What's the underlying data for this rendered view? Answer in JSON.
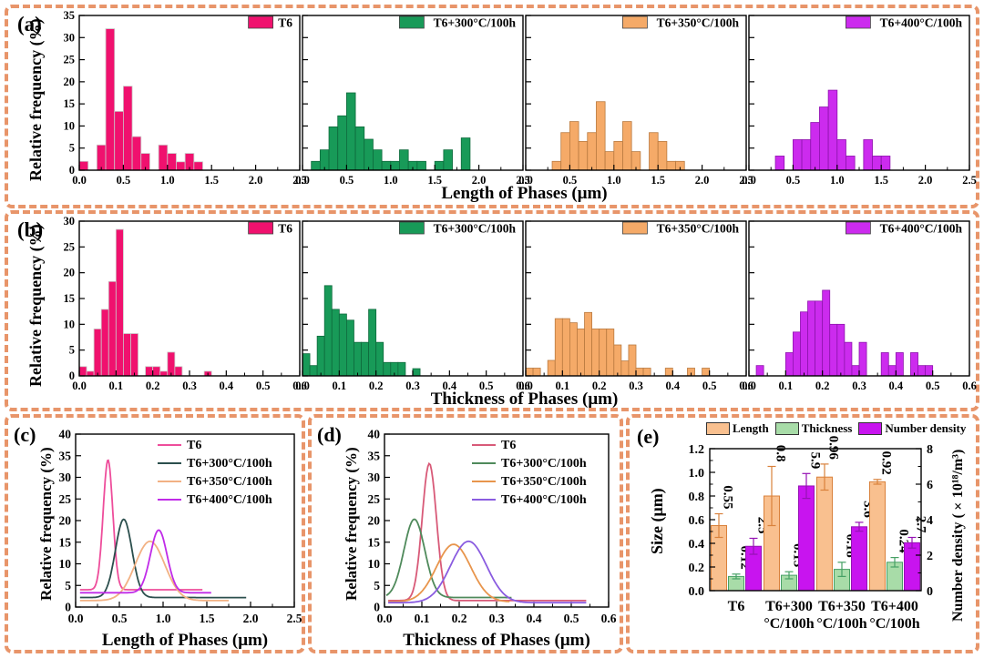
{
  "figure": {
    "border_color": "#E8956A",
    "background": "#ffffff"
  },
  "chart_data": [
    {
      "id": "a",
      "letter": "(a)",
      "type": "histogram-row",
      "ylabel": "Relative frequency (%)",
      "xlabel": "Length of Phases (μm)",
      "ylim": [
        0,
        35
      ],
      "yticks": [
        0,
        5,
        10,
        15,
        20,
        25,
        30,
        35
      ],
      "xlim": [
        0,
        2.5
      ],
      "xticks": [
        0,
        0.5,
        1,
        1.5,
        2,
        2.5
      ],
      "xtick_labels": [
        "0.0",
        "0.5",
        "1.0",
        "1.5",
        "2.0",
        "2.5"
      ],
      "x_minor_step": 0.25,
      "bin_width": 0.1,
      "grid": false,
      "subplots": [
        {
          "legend": "T6",
          "fill": "#F0116E",
          "stroke": "#c9c9c9",
          "bars": [
            [
              0.0,
              2
            ],
            [
              0.2,
              5.7
            ],
            [
              0.3,
              32
            ],
            [
              0.4,
              13.3
            ],
            [
              0.5,
              19
            ],
            [
              0.6,
              7.6
            ],
            [
              0.7,
              3.8
            ],
            [
              0.9,
              5.7
            ],
            [
              1.0,
              3.8
            ],
            [
              1.1,
              1.9
            ],
            [
              1.2,
              3.8
            ],
            [
              1.3,
              1.9
            ]
          ]
        },
        {
          "legend": "T6+300°C/100h",
          "fill": "#189A58",
          "stroke": "#0e6a3c",
          "bars": [
            [
              0.1,
              2
            ],
            [
              0.2,
              4.6
            ],
            [
              0.3,
              9.8
            ],
            [
              0.4,
              12.3
            ],
            [
              0.5,
              17.5
            ],
            [
              0.6,
              9.8
            ],
            [
              0.7,
              7
            ],
            [
              0.8,
              4.6
            ],
            [
              0.9,
              2
            ],
            [
              1.0,
              2
            ],
            [
              1.1,
              4.6
            ],
            [
              1.2,
              2
            ],
            [
              1.3,
              2
            ],
            [
              1.5,
              2
            ],
            [
              1.6,
              4.6
            ],
            [
              1.8,
              7.3
            ]
          ]
        },
        {
          "legend": "T6+350°C/100h",
          "fill": "#F5AA68",
          "stroke": "#b97a40",
          "bars": [
            [
              0.3,
              2
            ],
            [
              0.4,
              8.5
            ],
            [
              0.5,
              11
            ],
            [
              0.6,
              6.5
            ],
            [
              0.7,
              8.5
            ],
            [
              0.8,
              15.5
            ],
            [
              0.9,
              4.2
            ],
            [
              1.0,
              6.5
            ],
            [
              1.1,
              11
            ],
            [
              1.2,
              4.2
            ],
            [
              1.4,
              8.5
            ],
            [
              1.5,
              6.5
            ],
            [
              1.6,
              2
            ],
            [
              1.7,
              2
            ]
          ]
        },
        {
          "legend": "T6+400°C/100h",
          "fill": "#CC2BEE",
          "stroke": "#8d14ad",
          "bars": [
            [
              0.3,
              3.2
            ],
            [
              0.5,
              6.9
            ],
            [
              0.6,
              6.9
            ],
            [
              0.7,
              10.8
            ],
            [
              0.8,
              14.3
            ],
            [
              0.9,
              18.1
            ],
            [
              1.0,
              6.9
            ],
            [
              1.1,
              3.2
            ],
            [
              1.3,
              6.9
            ],
            [
              1.4,
              3.2
            ],
            [
              1.5,
              3.2
            ]
          ]
        }
      ]
    },
    {
      "id": "b",
      "letter": "(b)",
      "type": "histogram-row",
      "ylabel": "Relative frequency (%)",
      "xlabel": "Thickness of Phases (μm)",
      "ylim": [
        0,
        30
      ],
      "yticks": [
        0,
        5,
        10,
        15,
        20,
        25,
        30
      ],
      "xlim": [
        0,
        0.6
      ],
      "xticks": [
        0,
        0.1,
        0.2,
        0.3,
        0.4,
        0.5,
        0.6
      ],
      "xtick_labels": [
        "0.0",
        "0.1",
        "0.2",
        "0.3",
        "0.4",
        "0.5",
        "0.6"
      ],
      "x_minor_step": 0.05,
      "bin_width": 0.02,
      "grid": false,
      "subplots": [
        {
          "legend": "T6",
          "fill": "#F0116E",
          "stroke": "#c9c9c9",
          "bars": [
            [
              0.0,
              1.8
            ],
            [
              0.02,
              0.9
            ],
            [
              0.04,
              9.1
            ],
            [
              0.06,
              12.9
            ],
            [
              0.08,
              18.3
            ],
            [
              0.1,
              28.4
            ],
            [
              0.12,
              8.2
            ],
            [
              0.14,
              8.2
            ],
            [
              0.18,
              1.8
            ],
            [
              0.2,
              1.8
            ],
            [
              0.22,
              0.9
            ],
            [
              0.24,
              4.6
            ],
            [
              0.26,
              1.8
            ],
            [
              0.34,
              0.9
            ]
          ]
        },
        {
          "legend": "T6+300°C/100h",
          "fill": "#189A58",
          "stroke": "#0e6a3c",
          "bars": [
            [
              0.0,
              4.3
            ],
            [
              0.02,
              2
            ],
            [
              0.04,
              7.7
            ],
            [
              0.06,
              17.5
            ],
            [
              0.08,
              12.9
            ],
            [
              0.1,
              12
            ],
            [
              0.12,
              10.8
            ],
            [
              0.14,
              6.5
            ],
            [
              0.16,
              6.5
            ],
            [
              0.18,
              12.9
            ],
            [
              0.2,
              6.5
            ],
            [
              0.22,
              2.6
            ],
            [
              0.24,
              2.6
            ],
            [
              0.26,
              2.6
            ],
            [
              0.3,
              1.4
            ]
          ]
        },
        {
          "legend": "T6+350°C/100h",
          "fill": "#F5AA68",
          "stroke": "#b97a40",
          "bars": [
            [
              0.0,
              1.5
            ],
            [
              0.02,
              1.5
            ],
            [
              0.06,
              3
            ],
            [
              0.08,
              11.1
            ],
            [
              0.1,
              11.1
            ],
            [
              0.12,
              10.3
            ],
            [
              0.14,
              9.1
            ],
            [
              0.16,
              12.3
            ],
            [
              0.18,
              9.1
            ],
            [
              0.2,
              9.1
            ],
            [
              0.22,
              9.1
            ],
            [
              0.24,
              6
            ],
            [
              0.26,
              2.9
            ],
            [
              0.28,
              6
            ],
            [
              0.3,
              1.5
            ],
            [
              0.32,
              1.5
            ],
            [
              0.38,
              1.5
            ],
            [
              0.44,
              1.5
            ],
            [
              0.48,
              1.5
            ]
          ]
        },
        {
          "legend": "T6+400°C/100h",
          "fill": "#CC2BEE",
          "stroke": "#8d14ad",
          "bars": [
            [
              0.02,
              2
            ],
            [
              0.1,
              4.5
            ],
            [
              0.12,
              8.5
            ],
            [
              0.14,
              12.4
            ],
            [
              0.16,
              14.5
            ],
            [
              0.18,
              14.5
            ],
            [
              0.2,
              16.6
            ],
            [
              0.22,
              10
            ],
            [
              0.24,
              10
            ],
            [
              0.26,
              6.5
            ],
            [
              0.28,
              2
            ],
            [
              0.3,
              6.5
            ],
            [
              0.36,
              4.5
            ],
            [
              0.38,
              2
            ],
            [
              0.4,
              4.5
            ],
            [
              0.44,
              4.5
            ],
            [
              0.46,
              2
            ],
            [
              0.48,
              2
            ]
          ]
        }
      ]
    },
    {
      "id": "c",
      "letter": "(c)",
      "type": "line",
      "ylabel": "Relative frequency (%)",
      "xlabel": "Length of Phases (μm)",
      "ylim": [
        0,
        40
      ],
      "yticks": [
        0,
        5,
        10,
        15,
        20,
        25,
        30,
        35,
        40
      ],
      "xlim": [
        0,
        2.5
      ],
      "xticks": [
        0,
        0.5,
        1,
        1.5,
        2,
        2.5
      ],
      "xtick_labels": [
        "0.0",
        "0.5",
        "1.0",
        "1.5",
        "2.0",
        "2.5"
      ],
      "x_minor_step": 0.25,
      "grid": false,
      "legend_position": "top-right",
      "series": [
        {
          "name": "T6",
          "color": "#EE4D9B",
          "baseline": 4.0,
          "peak": 34.0,
          "mu": 0.37,
          "sigma": 0.055,
          "x_start": 0.05,
          "x_end": 1.45
        },
        {
          "name": "T6+300°C/100h",
          "color": "#2B4F4D",
          "baseline": 2.2,
          "peak": 20.3,
          "mu": 0.55,
          "sigma": 0.095,
          "x_start": 0.05,
          "x_end": 1.95
        },
        {
          "name": "T6+350°C/100h",
          "color": "#F2B183",
          "baseline": 1.5,
          "peak": 15.2,
          "mu": 0.85,
          "sigma": 0.17,
          "x_start": 0.05,
          "x_end": 1.75
        },
        {
          "name": "T6+400°C/100h",
          "color": "#C02BE8",
          "baseline": 3.3,
          "peak": 17.8,
          "mu": 0.95,
          "sigma": 0.095,
          "x_start": 0.05,
          "x_end": 1.55
        }
      ]
    },
    {
      "id": "d",
      "letter": "(d)",
      "type": "line",
      "ylabel": "Relative frequency (%)",
      "xlabel": "Thickness of Phases (μm)",
      "ylim": [
        0,
        40
      ],
      "yticks": [
        0,
        5,
        10,
        15,
        20,
        25,
        30,
        35,
        40
      ],
      "xlim": [
        0,
        0.6
      ],
      "xticks": [
        0,
        0.1,
        0.2,
        0.3,
        0.4,
        0.5,
        0.6
      ],
      "xtick_labels": [
        "0.0",
        "0.1",
        "0.2",
        "0.3",
        "0.4",
        "0.5",
        "0.6"
      ],
      "x_minor_step": 0.05,
      "grid": false,
      "legend_position": "top-right",
      "series": [
        {
          "name": "T6",
          "color": "#D85A78",
          "baseline": 1.5,
          "peak": 33.2,
          "mu": 0.12,
          "sigma": 0.019,
          "x_start": 0.01,
          "x_end": 0.54
        },
        {
          "name": "T6+300°C/100h",
          "color": "#4F8A5B",
          "baseline": 2.2,
          "peak": 20.3,
          "mu": 0.08,
          "sigma": 0.028,
          "x_start": 0.005,
          "x_end": 0.34
        },
        {
          "name": "T6+350°C/100h",
          "color": "#E8954C",
          "baseline": 1.2,
          "peak": 14.5,
          "mu": 0.185,
          "sigma": 0.046,
          "x_start": 0.01,
          "x_end": 0.335
        },
        {
          "name": "T6+400°C/100h",
          "color": "#8A5CE0",
          "baseline": 1.0,
          "peak": 15.2,
          "mu": 0.225,
          "sigma": 0.048,
          "x_start": 0.01,
          "x_end": 0.54
        }
      ]
    },
    {
      "id": "e",
      "letter": "(e)",
      "type": "bar",
      "ylabel_left": "Size (μm)",
      "ylabel_right": "Number density (×10¹⁸/m³)",
      "categories": [
        [
          "T6"
        ],
        [
          "T6+300",
          "°C/100h"
        ],
        [
          "T6+350",
          "°C/100h"
        ],
        [
          "T6+400",
          "°C/100h"
        ]
      ],
      "ylim_left": [
        0,
        1.2
      ],
      "yticks_left": [
        "0.0",
        "0.2",
        "0.4",
        "0.6",
        "0.8",
        "1.0",
        "1.2"
      ],
      "ylim_right": [
        0,
        8
      ],
      "yticks_right": [
        "0",
        "2",
        "4",
        "6",
        "8"
      ],
      "grid": false,
      "legend_position": "top",
      "series": [
        {
          "name": "Length",
          "axis": "left",
          "fill": "#F9C08F",
          "stroke": "#D9813B",
          "values": [
            0.55,
            0.8,
            0.96,
            0.92
          ],
          "errors": [
            0.1,
            0.25,
            0.11,
            0.02
          ],
          "labels": [
            "0.55",
            "0.8",
            "0.96",
            "0.92"
          ]
        },
        {
          "name": "Thickness",
          "axis": "left",
          "fill": "#A8DCA8",
          "stroke": "#46A065",
          "values": [
            0.12,
            0.13,
            0.18,
            0.24
          ],
          "errors": [
            0.02,
            0.03,
            0.06,
            0.04
          ],
          "labels": [
            "0.12",
            "0.13",
            "0.18",
            "0.24"
          ]
        },
        {
          "name": "Number density",
          "axis": "right",
          "fill": "#C814EF",
          "stroke": "#9612B4",
          "values": [
            2.5,
            5.9,
            3.6,
            2.7
          ],
          "errors": [
            0.45,
            0.7,
            0.25,
            0.3
          ],
          "labels": [
            "2.5",
            "5.9",
            "3.6",
            "2.7"
          ]
        }
      ]
    }
  ]
}
